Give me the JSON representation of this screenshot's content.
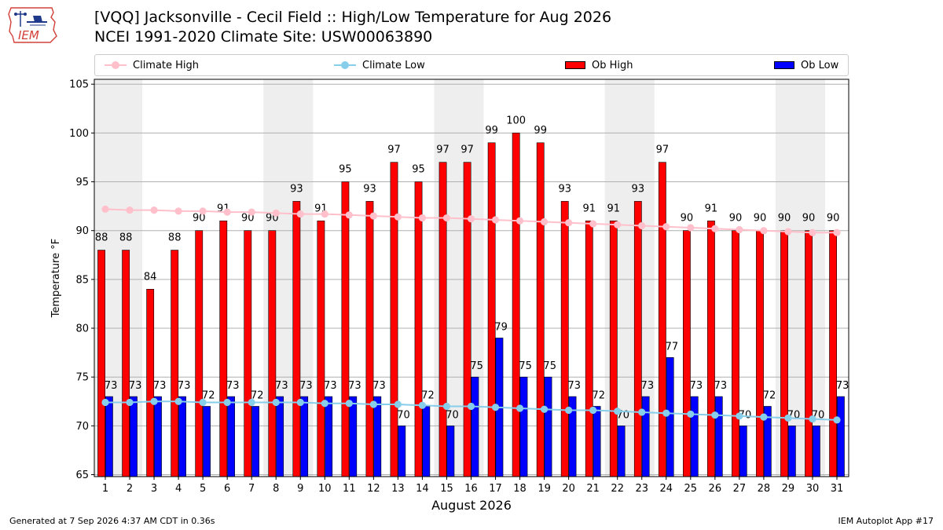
{
  "header": {
    "title_line1": "[VQQ] Jacksonville - Cecil Field :: High/Low Temperature for Aug 2026",
    "title_line2": "NCEI 1991-2020 Climate Site: USW00063890"
  },
  "logo": {
    "text": "IEM",
    "icon": "iem-iowa-map-logo"
  },
  "legend": {
    "climate_high": "Climate High",
    "climate_low": "Climate Low",
    "ob_high": "Ob High",
    "ob_low": "Ob Low",
    "placement": "top (spanning plot width)"
  },
  "footer": {
    "left": "Generated at 7 Sep 2026 4:37 AM CDT in 0.36s",
    "right": "IEM Autoplot App #17"
  },
  "colors": {
    "ob_high": "#ff0000",
    "ob_low": "#0000ff",
    "climate_high": "#ffc0cb",
    "climate_low": "#87ceeb",
    "weekend_shade": "#eeeeee",
    "grid": "#b0b0b0"
  },
  "chart_data": {
    "type": "bar",
    "title": "[VQQ] Jacksonville - Cecil Field :: High/Low Temperature for Aug 2026",
    "subtitle": "NCEI 1991-2020 Climate Site: USW00063890",
    "xlabel": "August 2026",
    "ylabel": "Temperature °F",
    "ylim": [
      64.8,
      105.5
    ],
    "yticks": [
      65,
      70,
      75,
      80,
      85,
      90,
      95,
      100,
      105
    ],
    "grid": true,
    "categories": [
      "1",
      "2",
      "3",
      "4",
      "5",
      "6",
      "7",
      "8",
      "9",
      "10",
      "11",
      "12",
      "13",
      "14",
      "15",
      "16",
      "17",
      "18",
      "19",
      "20",
      "21",
      "22",
      "23",
      "24",
      "25",
      "26",
      "27",
      "28",
      "29",
      "30",
      "31"
    ],
    "shaded_days": [
      1,
      8,
      15,
      22,
      29
    ],
    "series": [
      {
        "name": "Ob High",
        "kind": "bar",
        "values": [
          88,
          88,
          84,
          88,
          90,
          91,
          90,
          90,
          93,
          91,
          95,
          93,
          97,
          95,
          97,
          97,
          99,
          100,
          99,
          93,
          91,
          91,
          93,
          97,
          90,
          91,
          90,
          90,
          90,
          90,
          90
        ]
      },
      {
        "name": "Ob Low",
        "kind": "bar",
        "values": [
          73,
          73,
          73,
          73,
          72,
          73,
          72,
          73,
          73,
          73,
          73,
          73,
          70,
          72,
          70,
          75,
          79,
          75,
          75,
          73,
          72,
          70,
          73,
          77,
          73,
          73,
          70,
          72,
          70,
          70,
          73
        ]
      },
      {
        "name": "Climate High",
        "kind": "line",
        "values": [
          92.2,
          92.1,
          92.1,
          92.0,
          92.0,
          91.9,
          91.9,
          91.8,
          91.7,
          91.7,
          91.6,
          91.5,
          91.4,
          91.3,
          91.3,
          91.2,
          91.1,
          91.0,
          90.9,
          90.8,
          90.7,
          90.6,
          90.5,
          90.4,
          90.3,
          90.2,
          90.1,
          90.0,
          89.9,
          89.8,
          89.8
        ]
      },
      {
        "name": "Climate Low",
        "kind": "line",
        "values": [
          72.4,
          72.4,
          72.5,
          72.5,
          72.4,
          72.4,
          72.4,
          72.4,
          72.4,
          72.3,
          72.3,
          72.2,
          72.2,
          72.1,
          72.0,
          72.0,
          71.9,
          71.8,
          71.7,
          71.6,
          71.6,
          71.5,
          71.4,
          71.3,
          71.2,
          71.1,
          71.0,
          70.9,
          70.8,
          70.7,
          70.6
        ]
      }
    ]
  }
}
